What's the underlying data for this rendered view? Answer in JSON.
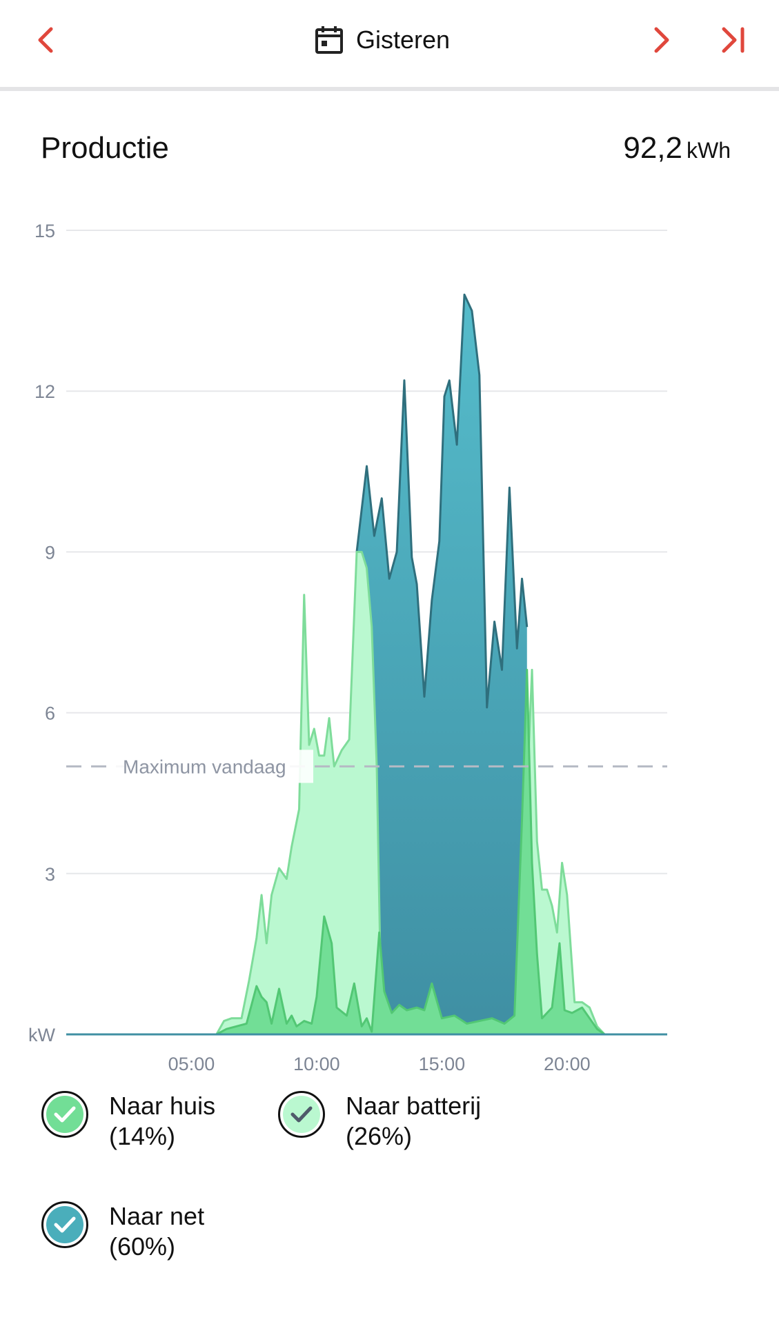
{
  "header": {
    "prev_icon": "chevron-left-icon",
    "calendar_icon": "calendar-icon",
    "date_label": "Gisteren",
    "next_icon": "chevron-right-icon",
    "last_icon": "skip-to-end-icon",
    "accent_color": "#e0473c"
  },
  "summary": {
    "title": "Productie",
    "total_value": "92,2",
    "total_unit": "kWh"
  },
  "chart_data": {
    "type": "area",
    "title": "",
    "ylabel": "kW",
    "xlabel": "",
    "ylim": [
      0,
      15
    ],
    "xlim": [
      0,
      24
    ],
    "y_ticks": [
      "15",
      "12",
      "9",
      "6",
      "3",
      "kW"
    ],
    "x_ticks": [
      "05:00",
      "10:00",
      "15:00",
      "20:00"
    ],
    "x_tick_values": [
      5,
      10,
      15,
      20
    ],
    "max_line": {
      "label": "Maximum vandaag",
      "value": 5.0
    },
    "grid": true,
    "series": [
      {
        "name": "Naar huis",
        "color": "#72de96",
        "x": [
          0,
          6.0,
          6.4,
          6.8,
          7.2,
          7.6,
          7.8,
          8.0,
          8.2,
          8.5,
          8.8,
          9.0,
          9.2,
          9.5,
          9.8,
          10.0,
          10.3,
          10.6,
          10.8,
          11.2,
          11.5,
          11.8,
          12.0,
          12.2,
          12.5,
          12.7,
          13.0,
          13.3,
          13.6,
          14.0,
          14.3,
          14.6,
          15.0,
          15.5,
          16.0,
          16.5,
          17.0,
          17.5,
          17.9,
          18.2,
          18.4,
          18.6,
          18.8,
          19.0,
          19.4,
          19.7,
          19.9,
          20.2,
          20.6,
          20.9,
          21.2,
          21.5,
          24
        ],
        "values": [
          0,
          0,
          0.1,
          0.15,
          0.2,
          0.9,
          0.7,
          0.6,
          0.2,
          0.85,
          0.2,
          0.35,
          0.15,
          0.25,
          0.2,
          0.7,
          2.2,
          1.7,
          0.5,
          0.35,
          0.95,
          0.15,
          0.3,
          0.05,
          1.9,
          0.8,
          0.4,
          0.55,
          0.45,
          0.5,
          0.45,
          0.95,
          0.3,
          0.35,
          0.2,
          0.25,
          0.3,
          0.2,
          0.35,
          4.0,
          6.8,
          3.2,
          1.5,
          0.3,
          0.5,
          1.7,
          0.45,
          0.4,
          0.5,
          0.3,
          0.1,
          0,
          0
        ]
      },
      {
        "name": "Naar batterij",
        "color": "#baf8d0",
        "x": [
          0,
          6.0,
          6.3,
          6.6,
          7.0,
          7.3,
          7.6,
          7.8,
          8.0,
          8.2,
          8.5,
          8.8,
          9.0,
          9.3,
          9.5,
          9.7,
          9.9,
          10.1,
          10.3,
          10.5,
          10.7,
          11.0,
          11.3,
          11.6,
          11.8,
          12.0,
          12.2,
          12.4,
          12.55,
          12.7,
          18.2,
          18.4,
          18.6,
          18.8,
          19.0,
          19.2,
          19.4,
          19.6,
          19.8,
          20.0,
          20.3,
          20.6,
          20.9,
          21.2,
          21.5,
          24
        ],
        "values": [
          0,
          0,
          0.25,
          0.3,
          0.3,
          1.0,
          1.8,
          2.6,
          1.7,
          2.6,
          3.1,
          2.9,
          3.5,
          4.2,
          8.2,
          5.4,
          5.7,
          5.2,
          5.2,
          5.9,
          5.0,
          5.3,
          5.5,
          9.0,
          9.0,
          8.7,
          7.6,
          5.0,
          1.2,
          0.0,
          0.0,
          4.5,
          6.8,
          3.6,
          2.7,
          2.7,
          2.4,
          1.9,
          3.2,
          2.6,
          0.6,
          0.6,
          0.5,
          0.15,
          0,
          0
        ]
      },
      {
        "name": "Naar net",
        "color": "#4aaebb",
        "x": [
          11.6,
          12.0,
          12.3,
          12.6,
          12.9,
          13.2,
          13.5,
          13.8,
          14.0,
          14.3,
          14.6,
          14.9,
          15.1,
          15.3,
          15.6,
          15.9,
          16.2,
          16.5,
          16.8,
          17.1,
          17.4,
          17.7,
          18.0,
          18.2,
          18.4
        ],
        "values": [
          9.0,
          10.6,
          9.3,
          10.0,
          8.5,
          9.0,
          12.2,
          8.9,
          8.4,
          6.3,
          8.1,
          9.2,
          11.9,
          12.2,
          11.0,
          13.8,
          13.5,
          12.3,
          6.1,
          7.7,
          6.8,
          10.2,
          7.2,
          8.5,
          7.6
        ]
      }
    ]
  },
  "legend": [
    {
      "label": "Naar huis",
      "percent": "(14%)",
      "check_icon": "check-circle-icon",
      "color": "#72de96",
      "check_color": "#ffffff"
    },
    {
      "label": "Naar batterij",
      "percent": "(26%)",
      "check_icon": "check-circle-icon",
      "color": "#baf8d0",
      "check_color": "#4f5a6a"
    },
    {
      "label": "Naar net",
      "percent": "(60%)",
      "check_icon": "check-circle-icon",
      "color": "#4aaebb",
      "check_color": "#ffffff"
    }
  ]
}
